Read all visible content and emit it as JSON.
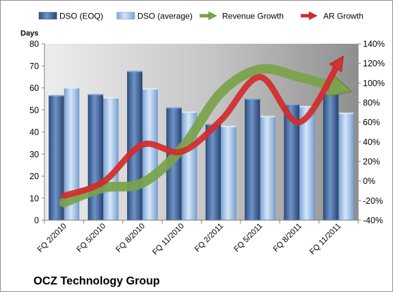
{
  "chart_data": {
    "type": "bar",
    "title": "OCZ Technology Group",
    "ylabel": "Days",
    "ylim": [
      0,
      80
    ],
    "y_ticks": [
      "0",
      "10",
      "20",
      "30",
      "40",
      "50",
      "60",
      "70",
      "80"
    ],
    "y2lim": [
      -40,
      140
    ],
    "y2_ticks": [
      "-40%",
      "-20%",
      "0%",
      "20%",
      "40%",
      "60%",
      "80%",
      "100%",
      "120%",
      "140%"
    ],
    "categories": [
      "FQ 2/2010",
      "FQ 5/2010",
      "FQ 8/2010",
      "FQ 11/2010",
      "FQ 2/2011",
      "FQ 5/2011",
      "FQ 8/2011",
      "FQ 11/2011"
    ],
    "bar_series": [
      {
        "name": "DSO (EOQ)",
        "values": [
          56.5,
          57,
          67.5,
          51,
          43.5,
          55,
          52.5,
          57.5
        ],
        "color": "#4a6ea6"
      },
      {
        "name": "DSO (average)",
        "values": [
          60,
          55.5,
          59.5,
          49,
          42.5,
          47,
          51.5,
          48.5
        ],
        "color": "#a9c8ea"
      }
    ],
    "line_series": [
      {
        "name": "Revenue Growth",
        "axis": "secondary",
        "values": [
          -22,
          -7,
          -2,
          33,
          90,
          114,
          106,
          95
        ],
        "color": "#7aa34a"
      },
      {
        "name": "AR Growth",
        "axis": "secondary",
        "values": [
          -15,
          -1,
          37,
          30,
          62,
          106,
          60,
          120
        ],
        "color": "#d42b2b"
      }
    ],
    "grid": false,
    "plot_background": "#c0c0c0",
    "legend_placement": "top"
  }
}
